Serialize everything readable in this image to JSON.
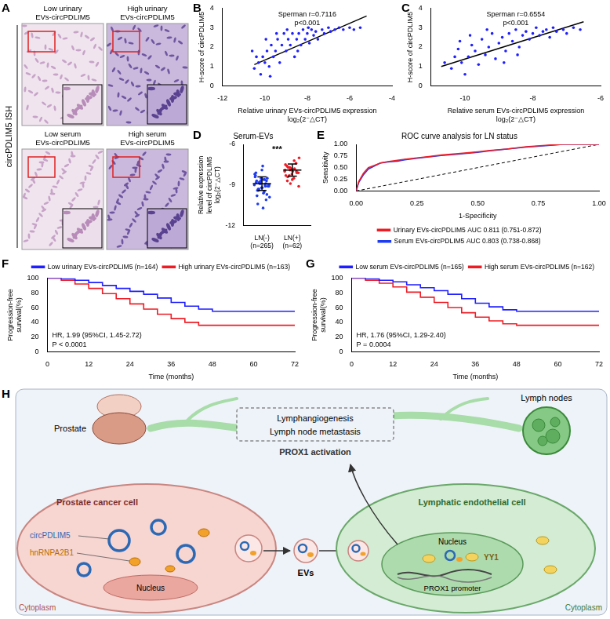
{
  "panel_A": {
    "letter": "A",
    "side_label": "circPDLIM5 ISH",
    "tiles": [
      "Low urinary EVs-circPDLIM5",
      "High urinary EVs-circPDLIM5",
      "Low serum EVs-circPDLIM5",
      "High serum EVs-circPDLIM5"
    ]
  },
  "chart_data": [
    {
      "panel": "B",
      "type": "scatter",
      "x_label": "Relative urinary EVs-circPDLIM5 expression log₂(2⁻△CT)",
      "y_label": "H-score of circPDLIM5",
      "annotations": [
        "Sperman r=0.7116",
        "p<0.001"
      ],
      "color": "#1f1fff",
      "marker": "circle",
      "x": [
        -10.5,
        -10.3,
        -10.2,
        -10.1,
        -10.0,
        -9.9,
        -9.8,
        -9.7,
        -9.6,
        -9.5,
        -9.4,
        -9.3,
        -9.2,
        -9.1,
        -9.0,
        -8.9,
        -8.8,
        -8.7,
        -8.6,
        -8.5,
        -8.4,
        -8.3,
        -8.2,
        -8.1,
        -8.0,
        -7.9,
        -7.8,
        -7.7,
        -7.6,
        -7.5,
        -7.3,
        -7.2,
        -7.0,
        -6.9,
        -6.7,
        -6.5,
        -6.3,
        -6.0,
        -5.8,
        -5.5,
        -10.4,
        -9.95,
        -9.45,
        -8.95,
        -8.45,
        -7.95,
        -9.75,
        -10.6
      ],
      "values": [
        0.9,
        1.2,
        0.6,
        1.5,
        1.2,
        1.8,
        1.0,
        2.1,
        1.5,
        1.8,
        2.4,
        1.2,
        2.1,
        2.7,
        1.8,
        2.4,
        2.1,
        2.7,
        1.5,
        2.4,
        2.7,
        2.1,
        2.9,
        2.4,
        2.7,
        2.2,
        2.9,
        2.6,
        2.8,
        2.4,
        2.9,
        2.7,
        3.0,
        2.8,
        2.9,
        3.0,
        2.9,
        3.0,
        2.9,
        3.0,
        1.5,
        2.4,
        2.7,
        2.9,
        1.8,
        3.0,
        0.5,
        1.8
      ],
      "fit_line": {
        "x": [
          -10.5,
          -5.2
        ],
        "values": [
          1.1,
          3.6
        ],
        "color": "#000000"
      },
      "xlim": [
        -12,
        -4
      ],
      "xticks": [
        -12,
        -10,
        -8,
        -6,
        -4
      ],
      "ylim": [
        0,
        4
      ],
      "yticks": [
        0,
        1,
        2,
        3,
        4
      ],
      "grid": false
    },
    {
      "panel": "C",
      "type": "scatter",
      "x_label": "Relative serum EVs-circPDLIM5 expression log₂(2⁻△CT)",
      "y_label": "H-score of circPDLIM5",
      "annotations": [
        "Sperman r=0.6554",
        "p<0.001"
      ],
      "color": "#1f1fff",
      "marker": "circle",
      "x": [
        -10.6,
        -10.4,
        -10.3,
        -10.2,
        -10.1,
        -10.0,
        -9.9,
        -9.8,
        -9.7,
        -9.6,
        -9.5,
        -9.4,
        -9.3,
        -9.2,
        -9.1,
        -9.0,
        -8.9,
        -8.8,
        -8.7,
        -8.6,
        -8.5,
        -8.4,
        -8.3,
        -8.2,
        -8.1,
        -8.0,
        -7.9,
        -7.8,
        -7.7,
        -7.6,
        -7.5,
        -7.4,
        -7.3,
        -7.1,
        -7.0,
        -6.8,
        -6.6,
        -9.85,
        -9.35,
        -10.15,
        -8.85,
        -8.45
      ],
      "values": [
        1.2,
        0.9,
        1.5,
        1.9,
        1.2,
        0.6,
        1.5,
        2.1,
        1.8,
        1.1,
        2.4,
        1.6,
        2.0,
        2.7,
        1.4,
        2.2,
        2.5,
        1.8,
        2.7,
        2.3,
        2.9,
        2.0,
        2.6,
        2.8,
        2.4,
        2.7,
        3.0,
        2.6,
        2.8,
        2.9,
        2.5,
        3.0,
        2.8,
        2.9,
        2.7,
        3.0,
        2.9,
        2.6,
        2.9,
        2.3,
        1.2,
        1.6
      ],
      "fit_line": {
        "x": [
          -10.7,
          -6.5
        ],
        "values": [
          1.0,
          3.3
        ],
        "color": "#000000"
      },
      "xlim": [
        -11,
        -6
      ],
      "xticks": [
        -10,
        -8,
        -6
      ],
      "ylim": [
        0,
        4
      ],
      "yticks": [
        0,
        1,
        2,
        3,
        4
      ],
      "grid": false
    },
    {
      "panel": "D",
      "type": "dot",
      "title": "Serum-EVs",
      "y_label": "Relative expression level of circPDLIM5 log₂(2⁻△CT)",
      "annotations": [
        "***"
      ],
      "categories": [
        "LN(-) (n=265)",
        "LN(+) (n=62)"
      ],
      "groups": [
        {
          "color": "#1f3cf0",
          "mean": -8.9,
          "sd": 0.5,
          "values": [
            -9.0,
            -8.7,
            -9.3,
            -8.5,
            -9.6,
            -8.9,
            -9.1,
            -8.2,
            -9.8,
            -8.8,
            -9.2,
            -8.6,
            -10.1,
            -9.0,
            -8.4,
            -9.4,
            -8.9,
            -7.9,
            -9.5,
            -8.7,
            -9.1,
            -8.3,
            -10.4,
            -8.8,
            -9.2,
            -8.6,
            -9.7,
            -9.0,
            -8.1,
            -9.3,
            -8.9,
            -7.6,
            -9.0,
            -8.5,
            -9.9,
            -8.8,
            -9.4,
            -8.7,
            -10.7,
            -9.1
          ]
        },
        {
          "color": "#ee1c25",
          "mean": -7.9,
          "sd": 0.45,
          "values": [
            -8.0,
            -7.6,
            -8.3,
            -7.8,
            -8.5,
            -7.4,
            -8.1,
            -7.9,
            -8.7,
            -7.7,
            -8.2,
            -7.2,
            -8.0,
            -9.1,
            -7.5,
            -8.4,
            -7.9,
            -8.6,
            -7.8,
            -8.1,
            -7.0,
            -8.3,
            -7.7,
            -8.9,
            -8.0
          ]
        }
      ],
      "ylim": [
        -12,
        -6
      ],
      "yticks": [
        -12,
        -9,
        -6
      ],
      "grid": false
    },
    {
      "panel": "E",
      "type": "line",
      "title": "ROC curve analysis for LN status",
      "x_label": "1-Specificity",
      "y_label": "Sensitivity",
      "series": [
        {
          "name": "Urinary EVs-circPDLIM5 AUC 0.811 (0.751-0.872)",
          "color": "#ee1c25",
          "x": [
            0,
            0.01,
            0.03,
            0.05,
            0.08,
            0.1,
            0.13,
            0.17,
            0.2,
            0.25,
            0.3,
            0.35,
            0.42,
            0.5,
            0.55,
            0.62,
            0.7,
            0.78,
            0.85,
            1
          ],
          "values": [
            0,
            0.2,
            0.38,
            0.5,
            0.56,
            0.6,
            0.63,
            0.66,
            0.68,
            0.71,
            0.74,
            0.77,
            0.8,
            0.84,
            0.87,
            0.9,
            0.95,
            0.98,
            1,
            1
          ]
        },
        {
          "name": "Serum EVs-circPDLIM5 AUC 0.803 (0.738-0.868)",
          "color": "#1f3cf0",
          "x": [
            0,
            0.01,
            0.03,
            0.05,
            0.08,
            0.1,
            0.13,
            0.17,
            0.2,
            0.25,
            0.3,
            0.35,
            0.42,
            0.5,
            0.55,
            0.62,
            0.7,
            0.78,
            0.85,
            1
          ],
          "values": [
            0,
            0.18,
            0.35,
            0.47,
            0.55,
            0.6,
            0.62,
            0.64,
            0.67,
            0.7,
            0.73,
            0.76,
            0.79,
            0.83,
            0.86,
            0.9,
            0.94,
            0.97,
            1,
            1
          ]
        }
      ],
      "reference_line": {
        "x": [
          0,
          1
        ],
        "values": [
          0,
          1
        ],
        "color": "#000000",
        "line_style": "dashed"
      },
      "xlim": [
        0,
        1
      ],
      "xticks": [
        {
          "value": 0,
          "label": "0.00"
        },
        {
          "value": 0.25,
          "label": "0.25"
        },
        {
          "value": 0.5,
          "label": "0.50"
        },
        {
          "value": 0.75,
          "label": "0.75"
        },
        {
          "value": 1,
          "label": "1.00"
        }
      ],
      "ylim": [
        0,
        1
      ],
      "yticks": [
        {
          "value": 0,
          "label": "0.00"
        },
        {
          "value": 0.25,
          "label": "0.25"
        },
        {
          "value": 0.5,
          "label": "0.50"
        },
        {
          "value": 0.75,
          "label": "0.75"
        },
        {
          "value": 1,
          "label": "1.00"
        }
      ],
      "legend": "bottom",
      "grid": false
    },
    {
      "panel": "F",
      "type": "line",
      "line_style": "step",
      "x_label": "Time (months)",
      "y_label": "Progression-free survival(%)",
      "annotations": [
        "HR, 1.99 (95%CI, 1.45-2.72)",
        "P < 0.0001"
      ],
      "x": [
        0,
        4,
        8,
        12,
        16,
        20,
        24,
        28,
        32,
        36,
        40,
        44,
        48,
        72
      ],
      "series": [
        {
          "name": "Low urinary EVs-circPDLIM5 (n=164)",
          "color": "#1f1fff",
          "values": [
            100,
            99,
            97,
            94,
            90,
            86,
            82,
            78,
            73,
            67,
            62,
            58,
            55,
            55
          ]
        },
        {
          "name": "High urinary EVs-circPDLIM5 (n=163)",
          "color": "#ee1c25",
          "values": [
            100,
            97,
            92,
            86,
            79,
            72,
            65,
            58,
            51,
            45,
            40,
            36,
            36,
            36
          ]
        }
      ],
      "xlim": [
        0,
        72
      ],
      "xticks": [
        0,
        12,
        24,
        36,
        48,
        60,
        72
      ],
      "ylim": [
        0,
        100
      ],
      "yticks": [
        0,
        20,
        40,
        60,
        80,
        100
      ],
      "legend": "top right",
      "grid": false
    },
    {
      "panel": "G",
      "type": "line",
      "line_style": "step",
      "x_label": "Time (months)",
      "y_label": "Progression-free survival(%)",
      "annotations": [
        "HR, 1.76 (95%CI, 1.29-2.40)",
        "P = 0.0004"
      ],
      "x": [
        0,
        4,
        8,
        12,
        16,
        20,
        24,
        28,
        32,
        36,
        40,
        44,
        48,
        72
      ],
      "series": [
        {
          "name": "Low serum EVs-circPDLIM5 (n=165)",
          "color": "#1f1fff",
          "values": [
            100,
            99,
            97,
            95,
            91,
            87,
            83,
            78,
            72,
            66,
            61,
            57,
            55,
            55
          ]
        },
        {
          "name": "High serum EVs-circPDLIM5 (n=162)",
          "color": "#ee1c25",
          "values": [
            100,
            97,
            93,
            88,
            81,
            74,
            67,
            60,
            53,
            47,
            42,
            38,
            36,
            36
          ]
        }
      ],
      "xlim": [
        0,
        72
      ],
      "xticks": [
        0,
        12,
        24,
        36,
        48,
        60,
        72
      ],
      "ylim": [
        0,
        100
      ],
      "yticks": [
        0,
        20,
        40,
        60,
        80,
        100
      ],
      "legend": "top right",
      "grid": false
    }
  ],
  "panel_H": {
    "letter": "H",
    "prostate": "Prostate",
    "lymph_nodes": "Lymph nodes",
    "process": [
      "Lymphangiogenesis",
      "Lymph node metastasis"
    ],
    "activation": "PROX1 activation",
    "tumor_cell": {
      "title": "Prostate cancer cell",
      "molecules": [
        "circPDLIM5",
        "hnRNPA2B1"
      ],
      "nucleus": "Nucleus",
      "compartment": "Cytoplasm"
    },
    "vesicles": "EVs",
    "endothelial_cell": {
      "title": "Lymphatic endothelial cell",
      "factor": "YY1",
      "promoter": "PROX1 promoter",
      "nucleus": "Nucleus",
      "compartment": "Cytoplasm"
    }
  }
}
